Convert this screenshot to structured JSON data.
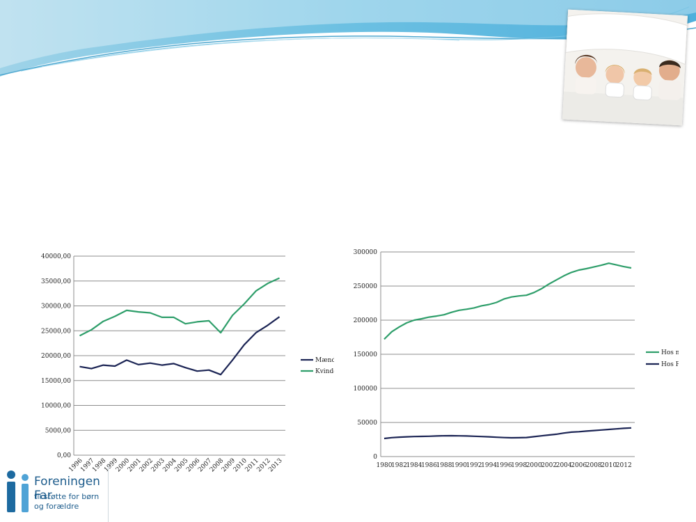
{
  "logo": {
    "title": "Foreningen Far",
    "subtitle_line1": "til støtte for børn",
    "subtitle_line2": "og forældre"
  },
  "photo": {
    "icon": "family-photo"
  },
  "colors": {
    "dark": "#1b2454",
    "green": "#2e9e6a",
    "banner": "#5ab4d8"
  },
  "chart_data": [
    {
      "type": "line",
      "title": "",
      "xlabel": "",
      "ylabel": "",
      "ylim": [
        0,
        40000
      ],
      "yticks": [
        "0,00",
        "5000,00",
        "10000,00",
        "15000,00",
        "20000,00",
        "25000,00",
        "30000,00",
        "35000,00",
        "40000,00"
      ],
      "categories": [
        "1996",
        "1997",
        "1998",
        "1999",
        "2000",
        "2001",
        "2002",
        "2003",
        "2004",
        "2005",
        "2006",
        "2007",
        "2008",
        "2009",
        "2010",
        "2011",
        "2012",
        "2013"
      ],
      "grid": true,
      "legend": "right",
      "series": [
        {
          "name": "Mænd",
          "color": "#1b2454",
          "values": [
            17800,
            17400,
            18100,
            17900,
            19100,
            18200,
            18500,
            18100,
            18400,
            17600,
            16900,
            17100,
            16200,
            19100,
            22200,
            24600,
            26100,
            27800
          ]
        },
        {
          "name": "Kvinder",
          "color": "#2e9e6a",
          "values": [
            24000,
            25200,
            26900,
            27900,
            29100,
            28800,
            28600,
            27700,
            27700,
            26400,
            26800,
            27000,
            24600,
            28100,
            30400,
            33000,
            34500,
            35600
          ]
        }
      ]
    },
    {
      "type": "line",
      "title": "",
      "xlabel": "",
      "ylabel": "",
      "ylim": [
        0,
        300000
      ],
      "yticks": [
        "0",
        "50000",
        "100000",
        "150000",
        "200000",
        "250000",
        "300000"
      ],
      "x": [
        1980,
        1981,
        1982,
        1983,
        1984,
        1985,
        1986,
        1987,
        1988,
        1989,
        1990,
        1991,
        1992,
        1993,
        1994,
        1995,
        1996,
        1997,
        1998,
        1999,
        2000,
        2001,
        2002,
        2003,
        2004,
        2005,
        2006,
        2007,
        2008,
        2009,
        2010,
        2011,
        2012,
        2013
      ],
      "xticks": [
        "1980",
        "1982",
        "1984",
        "1986",
        "1988",
        "1990",
        "1992",
        "1994",
        "1996",
        "1998",
        "2000",
        "2002",
        "2004",
        "2006",
        "2008",
        "2010",
        "2012"
      ],
      "grid": true,
      "legend": "right",
      "series": [
        {
          "name": "Hos mor",
          "color": "#2e9e6a",
          "values": [
            172000,
            183000,
            190000,
            196000,
            200000,
            202000,
            204500,
            206000,
            208000,
            211500,
            214500,
            216000,
            218000,
            221000,
            223000,
            226000,
            231000,
            234000,
            235500,
            236500,
            240500,
            246000,
            253000,
            259000,
            265000,
            270000,
            273500,
            275500,
            278000,
            280500,
            283500,
            281000,
            278500,
            276500
          ]
        },
        {
          "name": "Hos Far",
          "color": "#1b2454",
          "values": [
            26500,
            27800,
            28500,
            29000,
            29400,
            29600,
            29800,
            30200,
            30500,
            30600,
            30400,
            30200,
            29800,
            29400,
            29000,
            28400,
            27900,
            27600,
            27700,
            28000,
            29200,
            30400,
            31600,
            32800,
            34500,
            35800,
            36400,
            37300,
            38200,
            39000,
            39800,
            40600,
            41400,
            42000
          ]
        }
      ]
    }
  ]
}
